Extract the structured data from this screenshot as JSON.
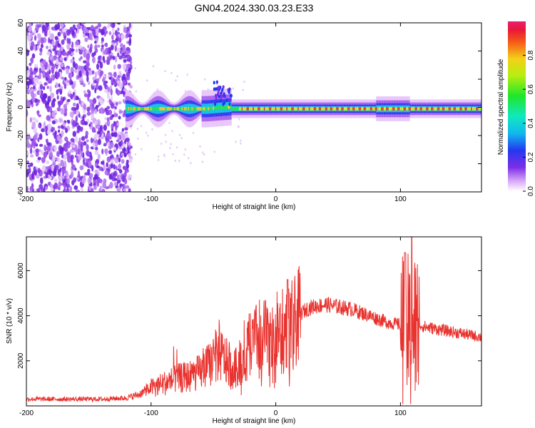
{
  "title": "GN04.2024.330.03.23.E33",
  "chart_data": [
    {
      "type": "heatmap",
      "xlabel": "Height of straight line (km)",
      "ylabel": "Frequency (Hz)",
      "xlim": [
        -200,
        165
      ],
      "ylim": [
        -60,
        60
      ],
      "xticks": [
        -200,
        -100,
        0,
        100
      ],
      "yticks": [
        -60,
        -40,
        -20,
        0,
        20,
        40,
        60
      ],
      "colorbar": {
        "label": "Normalized spectral amplitude",
        "range": [
          0,
          1
        ],
        "ticks": [
          "0.0",
          "0.2",
          "0.4",
          "0.6",
          "0.8"
        ],
        "ticks_values": [
          0,
          0.2,
          0.4,
          0.6,
          0.8
        ]
      },
      "features": {
        "noise_region_x": [
          -200,
          -120
        ],
        "signal_start_x": -120,
        "signal_end_x": 165,
        "center_frequency": -1
      }
    },
    {
      "type": "line",
      "xlabel": "Height of straight line (km)",
      "ylabel": "SNR (10 * v/v)",
      "xlim": [
        -200,
        165
      ],
      "ylim": [
        0,
        7500
      ],
      "xticks": [
        -200,
        -100,
        0,
        100
      ],
      "yticks": [
        2000,
        4000,
        6000
      ],
      "series": [
        {
          "color": "#e8322e",
          "x": [
            -200,
            -180,
            -160,
            -140,
            -120,
            -110,
            -100,
            -90,
            -80,
            -70,
            -60,
            -50,
            -45,
            -40,
            -35,
            -30,
            -25,
            -20,
            -15,
            -10,
            -5,
            0,
            5,
            10,
            15,
            20,
            25,
            30,
            40,
            50,
            60,
            70,
            80,
            90,
            100,
            105,
            108,
            110,
            115,
            120,
            130,
            140,
            150,
            165
          ],
          "values": [
            300,
            300,
            300,
            300,
            350,
            500,
            800,
            1000,
            1200,
            1300,
            1500,
            2000,
            2300,
            2000,
            1500,
            1800,
            2500,
            2700,
            3000,
            3200,
            2800,
            3300,
            3400,
            3500,
            3700,
            4100,
            4300,
            4400,
            4500,
            4400,
            4300,
            4100,
            3900,
            3700,
            3600,
            3500,
            3000,
            3300,
            3600,
            3500,
            3400,
            3300,
            3200,
            3050
          ]
        }
      ]
    }
  ]
}
